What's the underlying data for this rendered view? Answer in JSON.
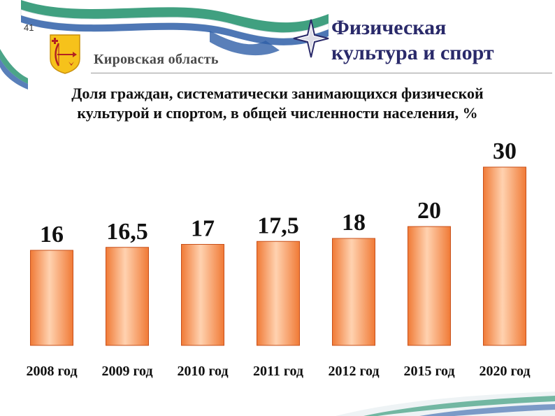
{
  "slide_number": "41",
  "region": "Кировская область",
  "section_title": [
    "Физическая",
    "культура и спорт"
  ],
  "subtitle": [
    "Доля граждан, систематически занимающихся физической",
    "культурой и спортом, в общей численности населения, %"
  ],
  "colors": {
    "bar_light": "#ffd2b0",
    "bar_dark": "#f07a36",
    "bar_border": "#c8501a",
    "ribbon_green": "#1f8f6a",
    "ribbon_blue": "#2f5fa8",
    "section_title": "#2a2a6a"
  },
  "icons": {
    "crest": "kirov-oblast-coat-of-arms-icon",
    "star": "four-point-star-icon"
  },
  "chart_data": {
    "type": "bar",
    "title": "Доля граждан, систематически занимающихся физической культурой и спортом, в общей численности населения, %",
    "categories": [
      "2008 год",
      "2009 год",
      "2010 год",
      "2011 год",
      "2012 год",
      "2015 год",
      "2020 год"
    ],
    "values": [
      16,
      16.5,
      17,
      17.5,
      18,
      20,
      30
    ],
    "value_labels": [
      "16",
      "16,5",
      "17",
      "17,5",
      "18",
      "20",
      "30"
    ],
    "xlabel": "",
    "ylabel": "",
    "ylim": [
      0,
      30
    ],
    "grid": false,
    "legend": "none"
  }
}
